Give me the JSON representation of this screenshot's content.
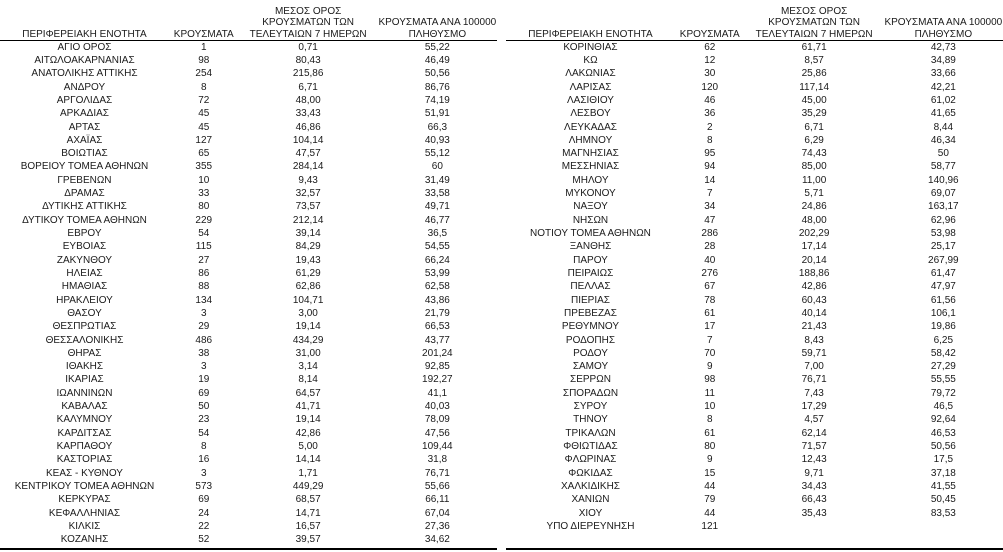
{
  "colors": {
    "text": "#1a1a1a",
    "border": "#000000",
    "background": "#ffffff"
  },
  "table": {
    "headers": {
      "region": "ΠΕΡΙΦΕΡΕΙΑΚΗ ΕΝΟΤΗΤΑ",
      "cases": "ΚΡΟΥΣΜΑΤΑ",
      "avg7day": "ΜΕΣΟΣ ΟΡΟΣ\nΚΡΟΥΣΜΑΤΩΝ ΤΩΝ\nΤΕΛΕΥΤΑΙΩΝ 7 ΗΜΕΡΩΝ",
      "per100k": "ΚΡΟΥΣΜΑΤΑ ΑΝΑ 100000\nΠΛΗΘΥΣΜΟ"
    },
    "left_rows": [
      [
        "ΑΓΙΟ ΟΡΟΣ",
        "1",
        "0,71",
        "55,22"
      ],
      [
        "ΑΙΤΩΛΟΑΚΑΡΝΑΝΙΑΣ",
        "98",
        "80,43",
        "46,49"
      ],
      [
        "ΑΝΑΤΟΛΙΚΗΣ ΑΤΤΙΚΗΣ",
        "254",
        "215,86",
        "50,56"
      ],
      [
        "ΑΝΔΡΟΥ",
        "8",
        "6,71",
        "86,76"
      ],
      [
        "ΑΡΓΟΛΙΔΑΣ",
        "72",
        "48,00",
        "74,19"
      ],
      [
        "ΑΡΚΑΔΙΑΣ",
        "45",
        "33,43",
        "51,91"
      ],
      [
        "ΑΡΤΑΣ",
        "45",
        "46,86",
        "66,3"
      ],
      [
        "ΑΧΑΪΑΣ",
        "127",
        "104,14",
        "40,93"
      ],
      [
        "ΒΟΙΩΤΙΑΣ",
        "65",
        "47,57",
        "55,12"
      ],
      [
        "ΒΟΡΕΙΟΥ ΤΟΜΕΑ ΑΘΗΝΩΝ",
        "355",
        "284,14",
        "60"
      ],
      [
        "ΓΡΕΒΕΝΩΝ",
        "10",
        "9,43",
        "31,49"
      ],
      [
        "ΔΡΑΜΑΣ",
        "33",
        "32,57",
        "33,58"
      ],
      [
        "ΔΥΤΙΚΗΣ ΑΤΤΙΚΗΣ",
        "80",
        "73,57",
        "49,71"
      ],
      [
        "ΔΥΤΙΚΟΥ ΤΟΜΕΑ ΑΘΗΝΩΝ",
        "229",
        "212,14",
        "46,77"
      ],
      [
        "ΕΒΡΟΥ",
        "54",
        "39,14",
        "36,5"
      ],
      [
        "ΕΥΒΟΙΑΣ",
        "115",
        "84,29",
        "54,55"
      ],
      [
        "ΖΑΚΥΝΘΟΥ",
        "27",
        "19,43",
        "66,24"
      ],
      [
        "ΗΛΕΙΑΣ",
        "86",
        "61,29",
        "53,99"
      ],
      [
        "ΗΜΑΘΙΑΣ",
        "88",
        "62,86",
        "62,58"
      ],
      [
        "ΗΡΑΚΛΕΙΟΥ",
        "134",
        "104,71",
        "43,86"
      ],
      [
        "ΘΑΣΟΥ",
        "3",
        "3,00",
        "21,79"
      ],
      [
        "ΘΕΣΠΡΩΤΙΑΣ",
        "29",
        "19,14",
        "66,53"
      ],
      [
        "ΘΕΣΣΑΛΟΝΙΚΗΣ",
        "486",
        "434,29",
        "43,77"
      ],
      [
        "ΘΗΡΑΣ",
        "38",
        "31,00",
        "201,24"
      ],
      [
        "ΙΘΑΚΗΣ",
        "3",
        "3,14",
        "92,85"
      ],
      [
        "ΙΚΑΡΙΑΣ",
        "19",
        "8,14",
        "192,27"
      ],
      [
        "ΙΩΑΝΝΙΝΩΝ",
        "69",
        "64,57",
        "41,1"
      ],
      [
        "ΚΑΒΑΛΑΣ",
        "50",
        "41,71",
        "40,03"
      ],
      [
        "ΚΑΛΥΜΝΟΥ",
        "23",
        "19,14",
        "78,09"
      ],
      [
        "ΚΑΡΔΙΤΣΑΣ",
        "54",
        "42,86",
        "47,56"
      ],
      [
        "ΚΑΡΠΑΘΟΥ",
        "8",
        "5,00",
        "109,44"
      ],
      [
        "ΚΑΣΤΟΡΙΑΣ",
        "16",
        "14,14",
        "31,8"
      ],
      [
        "ΚΕΑΣ - ΚΥΘΝΟΥ",
        "3",
        "1,71",
        "76,71"
      ],
      [
        "ΚΕΝΤΡΙΚΟΥ ΤΟΜΕΑ ΑΘΗΝΩΝ",
        "573",
        "449,29",
        "55,66"
      ],
      [
        "ΚΕΡΚΥΡΑΣ",
        "69",
        "68,57",
        "66,11"
      ],
      [
        "ΚΕΦΑΛΛΗΝΙΑΣ",
        "24",
        "14,71",
        "67,04"
      ],
      [
        "ΚΙΛΚΙΣ",
        "22",
        "16,57",
        "27,36"
      ],
      [
        "ΚΟΖΑΝΗΣ",
        "52",
        "39,57",
        "34,62"
      ]
    ],
    "right_rows": [
      [
        "ΚΟΡΙΝΘΙΑΣ",
        "62",
        "61,71",
        "42,73"
      ],
      [
        "ΚΩ",
        "12",
        "8,57",
        "34,89"
      ],
      [
        "ΛΑΚΩΝΙΑΣ",
        "30",
        "25,86",
        "33,66"
      ],
      [
        "ΛΑΡΙΣΑΣ",
        "120",
        "117,14",
        "42,21"
      ],
      [
        "ΛΑΣΙΘΙΟΥ",
        "46",
        "45,00",
        "61,02"
      ],
      [
        "ΛΕΣΒΟΥ",
        "36",
        "35,29",
        "41,65"
      ],
      [
        "ΛΕΥΚΑΔΑΣ",
        "2",
        "6,71",
        "8,44"
      ],
      [
        "ΛΗΜΝΟΥ",
        "8",
        "6,29",
        "46,34"
      ],
      [
        "ΜΑΓΝΗΣΙΑΣ",
        "95",
        "74,43",
        "50"
      ],
      [
        "ΜΕΣΣΗΝΙΑΣ",
        "94",
        "85,00",
        "58,77"
      ],
      [
        "ΜΗΛΟΥ",
        "14",
        "11,00",
        "140,96"
      ],
      [
        "ΜΥΚΟΝΟΥ",
        "7",
        "5,71",
        "69,07"
      ],
      [
        "ΝΑΞΟΥ",
        "34",
        "24,86",
        "163,17"
      ],
      [
        "ΝΗΣΩΝ",
        "47",
        "48,00",
        "62,96"
      ],
      [
        "ΝΟΤΙΟΥ ΤΟΜΕΑ ΑΘΗΝΩΝ",
        "286",
        "202,29",
        "53,98"
      ],
      [
        "ΞΑΝΘΗΣ",
        "28",
        "17,14",
        "25,17"
      ],
      [
        "ΠΑΡΟΥ",
        "40",
        "20,14",
        "267,99"
      ],
      [
        "ΠΕΙΡΑΙΩΣ",
        "276",
        "188,86",
        "61,47"
      ],
      [
        "ΠΕΛΛΑΣ",
        "67",
        "42,86",
        "47,97"
      ],
      [
        "ΠΙΕΡΙΑΣ",
        "78",
        "60,43",
        "61,56"
      ],
      [
        "ΠΡΕΒΕΖΑΣ",
        "61",
        "40,14",
        "106,1"
      ],
      [
        "ΡΕΘΥΜΝΟΥ",
        "17",
        "21,43",
        "19,86"
      ],
      [
        "ΡΟΔΟΠΗΣ",
        "7",
        "8,43",
        "6,25"
      ],
      [
        "ΡΟΔΟΥ",
        "70",
        "59,71",
        "58,42"
      ],
      [
        "ΣΑΜΟΥ",
        "9",
        "7,00",
        "27,29"
      ],
      [
        "ΣΕΡΡΩΝ",
        "98",
        "76,71",
        "55,55"
      ],
      [
        "ΣΠΟΡΑΔΩΝ",
        "11",
        "7,43",
        "79,72"
      ],
      [
        "ΣΥΡΟΥ",
        "10",
        "17,29",
        "46,5"
      ],
      [
        "ΤΗΝΟΥ",
        "8",
        "4,57",
        "92,64"
      ],
      [
        "ΤΡΙΚΑΛΩΝ",
        "61",
        "62,14",
        "46,53"
      ],
      [
        "ΦΘΙΩΤΙΔΑΣ",
        "80",
        "71,57",
        "50,56"
      ],
      [
        "ΦΛΩΡΙΝΑΣ",
        "9",
        "12,43",
        "17,5"
      ],
      [
        "ΦΩΚΙΔΑΣ",
        "15",
        "9,71",
        "37,18"
      ],
      [
        "ΧΑΛΚΙΔΙΚΗΣ",
        "44",
        "34,43",
        "41,55"
      ],
      [
        "ΧΑΝΙΩΝ",
        "79",
        "66,43",
        "50,45"
      ],
      [
        "ΧΙΟΥ",
        "44",
        "35,43",
        "83,53"
      ],
      [
        "ΥΠΟ ΔΙΕΡΕΥΝΗΣΗ",
        "121",
        "",
        ""
      ]
    ]
  }
}
